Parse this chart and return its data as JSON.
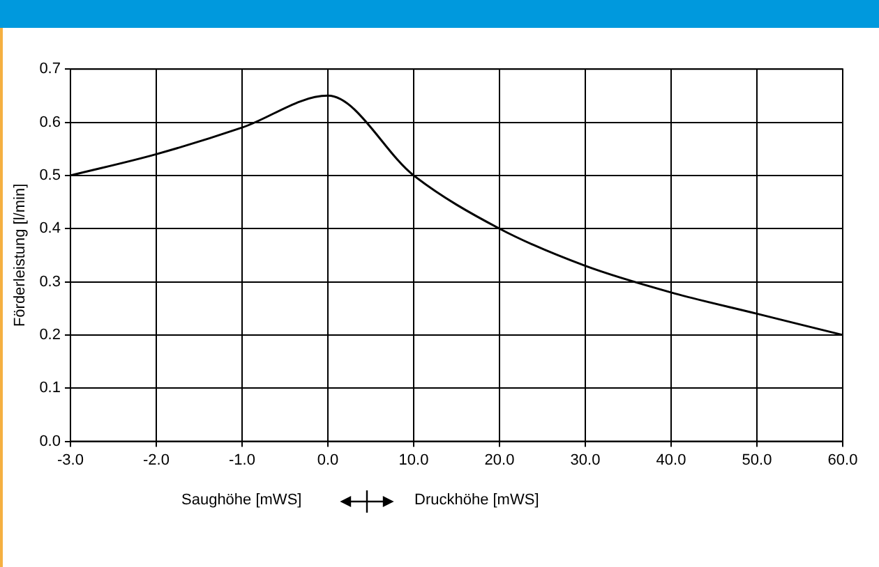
{
  "chart_data": {
    "type": "line",
    "ylabel": "Förderleistung [l/min]",
    "categories": [
      "-3.0",
      "-2.0",
      "-1.0",
      "0.0",
      "10.0",
      "20.0",
      "30.0",
      "40.0",
      "50.0",
      "60.0"
    ],
    "series": [
      {
        "color": "#000000",
        "values": [
          0.5,
          0.54,
          0.59,
          0.65,
          0.5,
          0.4,
          0.33,
          0.28,
          0.24,
          0.2
        ]
      }
    ],
    "ylim": [
      0,
      0.7
    ],
    "yticks": [
      {
        "value": 0,
        "label": "0.0"
      },
      {
        "value": 0.1,
        "label": "0.1"
      },
      {
        "value": 0.2,
        "label": "0.2"
      },
      {
        "value": 0.3,
        "label": "0.3"
      },
      {
        "value": 0.4,
        "label": "0.4"
      },
      {
        "value": 0.5,
        "label": "0.5"
      },
      {
        "value": 0.6,
        "label": "0.6"
      },
      {
        "value": 0.7,
        "label": "0.7"
      }
    ],
    "annotations": [
      "Saughöhe [mWS]",
      "Druckhöhe [mWS]"
    ],
    "grid": true,
    "legend": false,
    "marker": "none",
    "line_style": "solid"
  }
}
